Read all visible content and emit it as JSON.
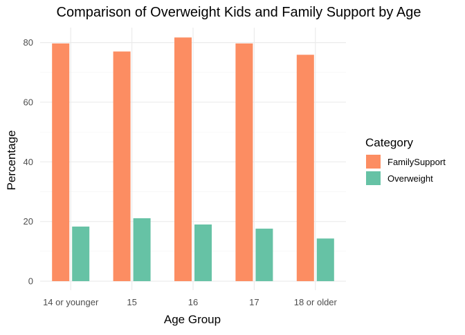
{
  "chart_data": {
    "type": "bar",
    "title": "Comparison of Overweight Kids and Family Support by Age",
    "xlabel": "Age Group",
    "ylabel": "Percentage",
    "categories": [
      "14 or younger",
      "15",
      "16",
      "17",
      "18 or older"
    ],
    "series": [
      {
        "name": "FamilySupport",
        "color": "#FC8D62",
        "values": [
          79.7,
          77.0,
          81.7,
          79.7,
          75.9
        ]
      },
      {
        "name": "Overweight",
        "color": "#66C2A5",
        "values": [
          18.3,
          21.1,
          19.0,
          17.6,
          14.3
        ]
      }
    ],
    "ylim": [
      -3,
      85
    ],
    "yticks": [
      0,
      20,
      40,
      60,
      80
    ],
    "grid": true,
    "legend": {
      "title": "Category",
      "position": "right"
    }
  }
}
